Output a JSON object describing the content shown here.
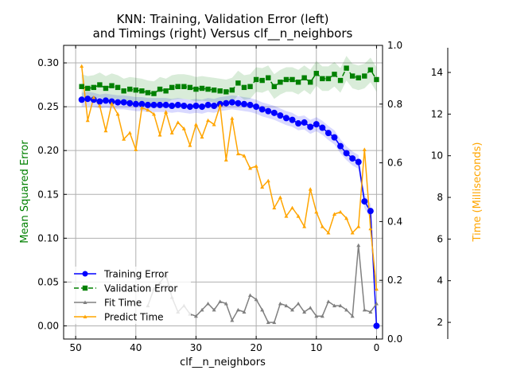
{
  "chart_data": {
    "type": "line",
    "title": "KNN: Training, Validation Error (left)\nand Timings (right) Versus clf__n_neighbors",
    "title_lines": [
      "KNN: Training, Validation Error (left)",
      "and Timings (right) Versus clf__n_neighbors"
    ],
    "xlabel": "clf__n_neighbors",
    "ylabel_left": "Mean Squared Error",
    "ylabel_right_time": "Time (Milliseconds)",
    "x_inverted": true,
    "xlim": [
      52,
      -1
    ],
    "ylim_left": [
      -0.015,
      0.32
    ],
    "ylim_right": [
      0,
      1
    ],
    "ylim_time": [
      1.2,
      15.3
    ],
    "grid": true,
    "legend_placement": "lower-left",
    "x_ticks": [
      50,
      40,
      30,
      20,
      10,
      0
    ],
    "y_left_ticks": [
      "0.00",
      "0.05",
      "0.10",
      "0.15",
      "0.20",
      "0.25",
      "0.30"
    ],
    "y_right_ticks": [
      "0.0",
      "0.2",
      "0.4",
      "0.6",
      "0.8",
      "1.0"
    ],
    "y_time_ticks": [
      2,
      4,
      6,
      8,
      10,
      12,
      14
    ],
    "colors": {
      "training": "#0000ff",
      "validation": "#008000",
      "fit": "#808080",
      "predict": "#ffa500",
      "ylabel_left": "#008000",
      "ylabel_time": "#ffa500"
    },
    "legend": [
      "Training Error",
      "Validation Error",
      "Fit Time",
      "Predict Time"
    ],
    "x": [
      49,
      48,
      47,
      46,
      45,
      44,
      43,
      42,
      41,
      40,
      39,
      38,
      37,
      36,
      35,
      34,
      33,
      32,
      31,
      30,
      29,
      28,
      27,
      26,
      25,
      24,
      23,
      22,
      21,
      20,
      19,
      18,
      17,
      16,
      15,
      14,
      13,
      12,
      11,
      10,
      9,
      8,
      7,
      6,
      5,
      4,
      3,
      2,
      1,
      0
    ],
    "series": [
      {
        "name": "Training Error",
        "axis": "left",
        "values": [
          0.258,
          0.259,
          0.258,
          0.256,
          0.257,
          0.256,
          0.255,
          0.255,
          0.254,
          0.253,
          0.253,
          0.252,
          0.252,
          0.252,
          0.252,
          0.251,
          0.252,
          0.251,
          0.25,
          0.251,
          0.25,
          0.252,
          0.251,
          0.253,
          0.254,
          0.255,
          0.254,
          0.253,
          0.252,
          0.25,
          0.247,
          0.245,
          0.243,
          0.24,
          0.237,
          0.235,
          0.231,
          0.232,
          0.227,
          0.23,
          0.226,
          0.22,
          0.215,
          0.205,
          0.197,
          0.191,
          0.187,
          0.142,
          0.131,
          0.0
        ],
        "band": 0.008
      },
      {
        "name": "Validation Error",
        "axis": "left",
        "values": [
          0.273,
          0.271,
          0.272,
          0.275,
          0.271,
          0.274,
          0.272,
          0.268,
          0.27,
          0.269,
          0.268,
          0.266,
          0.265,
          0.27,
          0.268,
          0.272,
          0.273,
          0.273,
          0.272,
          0.27,
          0.271,
          0.27,
          0.269,
          0.268,
          0.267,
          0.269,
          0.277,
          0.272,
          0.273,
          0.281,
          0.28,
          0.283,
          0.273,
          0.278,
          0.281,
          0.281,
          0.278,
          0.283,
          0.278,
          0.288,
          0.282,
          0.282,
          0.287,
          0.28,
          0.294,
          0.285,
          0.283,
          0.285,
          0.292,
          0.281
        ],
        "band": 0.014
      },
      {
        "name": "Fit Time",
        "axis": "time",
        "values": [
          null,
          null,
          null,
          null,
          null,
          null,
          null,
          null,
          null,
          null,
          null,
          2.8,
          3.6,
          3.9,
          4.3,
          3.2,
          2.5,
          2.8,
          2.4,
          2.3,
          2.6,
          2.9,
          2.6,
          3.0,
          2.9,
          2.1,
          2.6,
          2.5,
          3.3,
          3.1,
          2.6,
          2.0,
          2.0,
          2.9,
          2.8,
          2.6,
          2.9,
          2.5,
          2.7,
          2.3,
          2.3,
          3.0,
          2.8,
          2.8,
          2.6,
          2.3,
          5.7,
          2.6,
          2.5,
          2.9
        ]
      },
      {
        "name": "Predict Time",
        "axis": "time",
        "values": [
          14.3,
          11.7,
          12.8,
          12.4,
          11.2,
          12.5,
          12.0,
          10.8,
          11.1,
          10.3,
          12.3,
          12.2,
          12.0,
          11.0,
          12.1,
          11.1,
          11.6,
          11.3,
          10.5,
          11.5,
          10.9,
          11.7,
          11.5,
          12.4,
          9.8,
          11.8,
          10.1,
          10.0,
          9.4,
          9.5,
          8.5,
          8.8,
          7.5,
          8.0,
          7.1,
          7.5,
          7.1,
          6.6,
          8.4,
          7.3,
          6.6,
          6.3,
          7.2,
          7.3,
          7.0,
          6.3,
          6.6,
          10.3,
          6.5,
          3.6
        ]
      }
    ]
  }
}
